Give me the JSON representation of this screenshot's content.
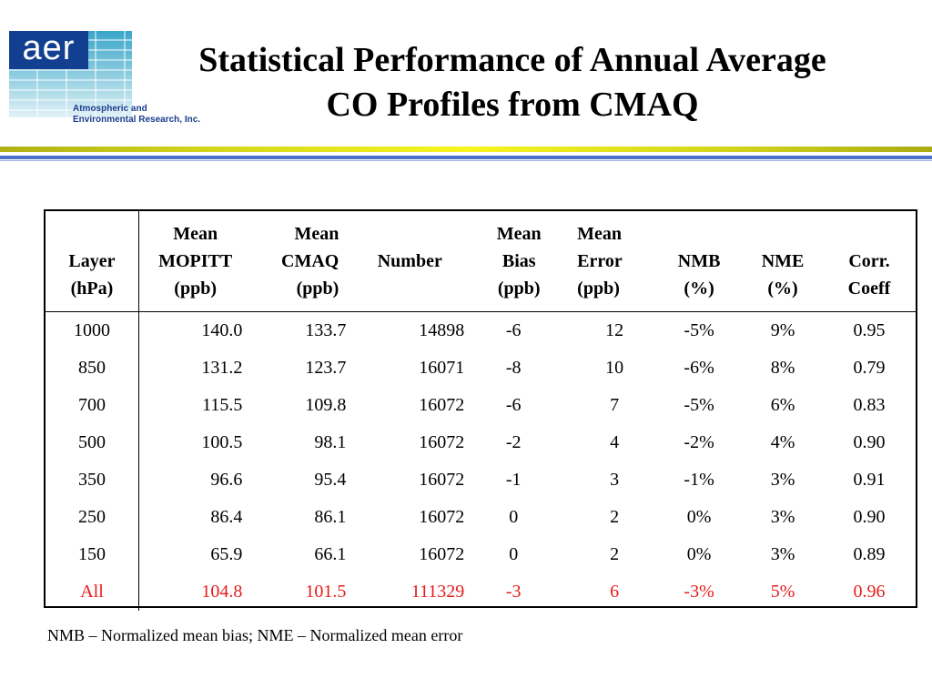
{
  "logo": {
    "mark": "aer",
    "name_line1": "Atmospheric and",
    "name_line2": "Environmental Research, Inc."
  },
  "title": {
    "line1": "Statistical Performance of Annual Average",
    "line2": "CO Profiles from CMAQ"
  },
  "colors": {
    "total_row": "#e81a1a",
    "stripe_green": "#f7f51f",
    "stripe_blue": "#4a72c9",
    "logo_blue": "#123f8f"
  },
  "table": {
    "headers": [
      {
        "l1": "",
        "l2": "Layer",
        "l3": "(hPa)"
      },
      {
        "l1": "Mean",
        "l2": "MOPITT",
        "l3": "(ppb)"
      },
      {
        "l1": "Mean",
        "l2": "CMAQ",
        "l3": "(ppb)"
      },
      {
        "l1": "",
        "l2": "Number",
        "l3": ""
      },
      {
        "l1": "Mean",
        "l2": "Bias",
        "l3": "(ppb)"
      },
      {
        "l1": "Mean",
        "l2": "Error",
        "l3": "(ppb)"
      },
      {
        "l1": "",
        "l2": "NMB",
        "l3": "(%)"
      },
      {
        "l1": "",
        "l2": "NME",
        "l3": "(%)"
      },
      {
        "l1": "",
        "l2": "Corr.",
        "l3": "Coeff"
      }
    ],
    "rows": [
      [
        "1000",
        "140.0",
        "133.7",
        "14898",
        "-6",
        "12",
        "-5%",
        "9%",
        "0.95"
      ],
      [
        "850",
        "131.2",
        "123.7",
        "16071",
        "-8",
        "10",
        "-6%",
        "8%",
        "0.79"
      ],
      [
        "700",
        "115.5",
        "109.8",
        "16072",
        "-6",
        "7",
        "-5%",
        "6%",
        "0.83"
      ],
      [
        "500",
        "100.5",
        "98.1",
        "16072",
        "-2",
        "4",
        "-2%",
        "4%",
        "0.90"
      ],
      [
        "350",
        "96.6",
        "95.4",
        "16072",
        "-1",
        "3",
        "-1%",
        "3%",
        "0.91"
      ],
      [
        "250",
        "86.4",
        "86.1",
        "16072",
        "0",
        "2",
        "0%",
        "3%",
        "0.90"
      ],
      [
        "150",
        "65.9",
        "66.1",
        "16072",
        "0",
        "2",
        "0%",
        "3%",
        "0.89"
      ]
    ],
    "total": [
      "All",
      "104.8",
      "101.5",
      "111329",
      "-3",
      "6",
      "-3%",
      "5%",
      "0.96"
    ]
  },
  "footnote": "NMB – Normalized mean bias; NME – Normalized mean error"
}
